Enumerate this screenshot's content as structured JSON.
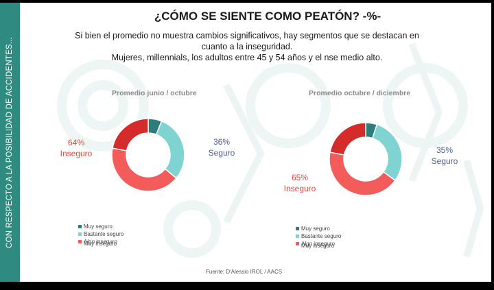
{
  "sidebar": {
    "text": "CON RESPECTO A LA POSIBILIDAD DE ACCIDENTES..."
  },
  "header": {
    "title": "¿CÓMO SE SIENTE COMO PEATÓN? -%-",
    "subtitle_lines": [
      "Si bien el promedio no muestra cambios significativos, hay segmentos que se destacan en",
      "cuanto a la inseguridad.",
      "Mujeres, millennials, los adultos entre 45 y 54 años y el nse medio alto."
    ]
  },
  "colors": {
    "muy_seguro": "#2e7d7a",
    "bastante_seguro": "#7fd3d1",
    "algo_inseguro": "#f45b5b",
    "muy_inseguro": "#d62b2b",
    "sidebar": "#2f8a80"
  },
  "chart_data": [
    {
      "type": "pie",
      "title": "Promedio junio / octubre",
      "categories": [
        "Muy seguro",
        "Bastante seguro",
        "Algo inseguro",
        "Muy inseguro"
      ],
      "values": [
        6,
        30,
        42,
        22
      ],
      "annotations": [
        {
          "value": "64%",
          "text": "Inseguro"
        },
        {
          "value": "36%",
          "text": "Seguro"
        }
      ],
      "legend": "bottom-left"
    },
    {
      "type": "pie",
      "title": "Promedio octubre / diciembre",
      "categories": [
        "Muy seguro",
        "Bastante seguro",
        "Algo inseguro",
        "Muy inseguro"
      ],
      "values": [
        5,
        30,
        43,
        22
      ],
      "annotations": [
        {
          "value": "35%",
          "text": "Seguro"
        },
        {
          "value": "65%",
          "text": "Inseguro"
        }
      ],
      "legend": "bottom-left"
    }
  ],
  "legend_labels": [
    "Muy seguro",
    "Bastante seguro",
    "Algo inseguro",
    "Muy inseguro"
  ],
  "source": "Fuente: D'Alessio IROL / AACS"
}
